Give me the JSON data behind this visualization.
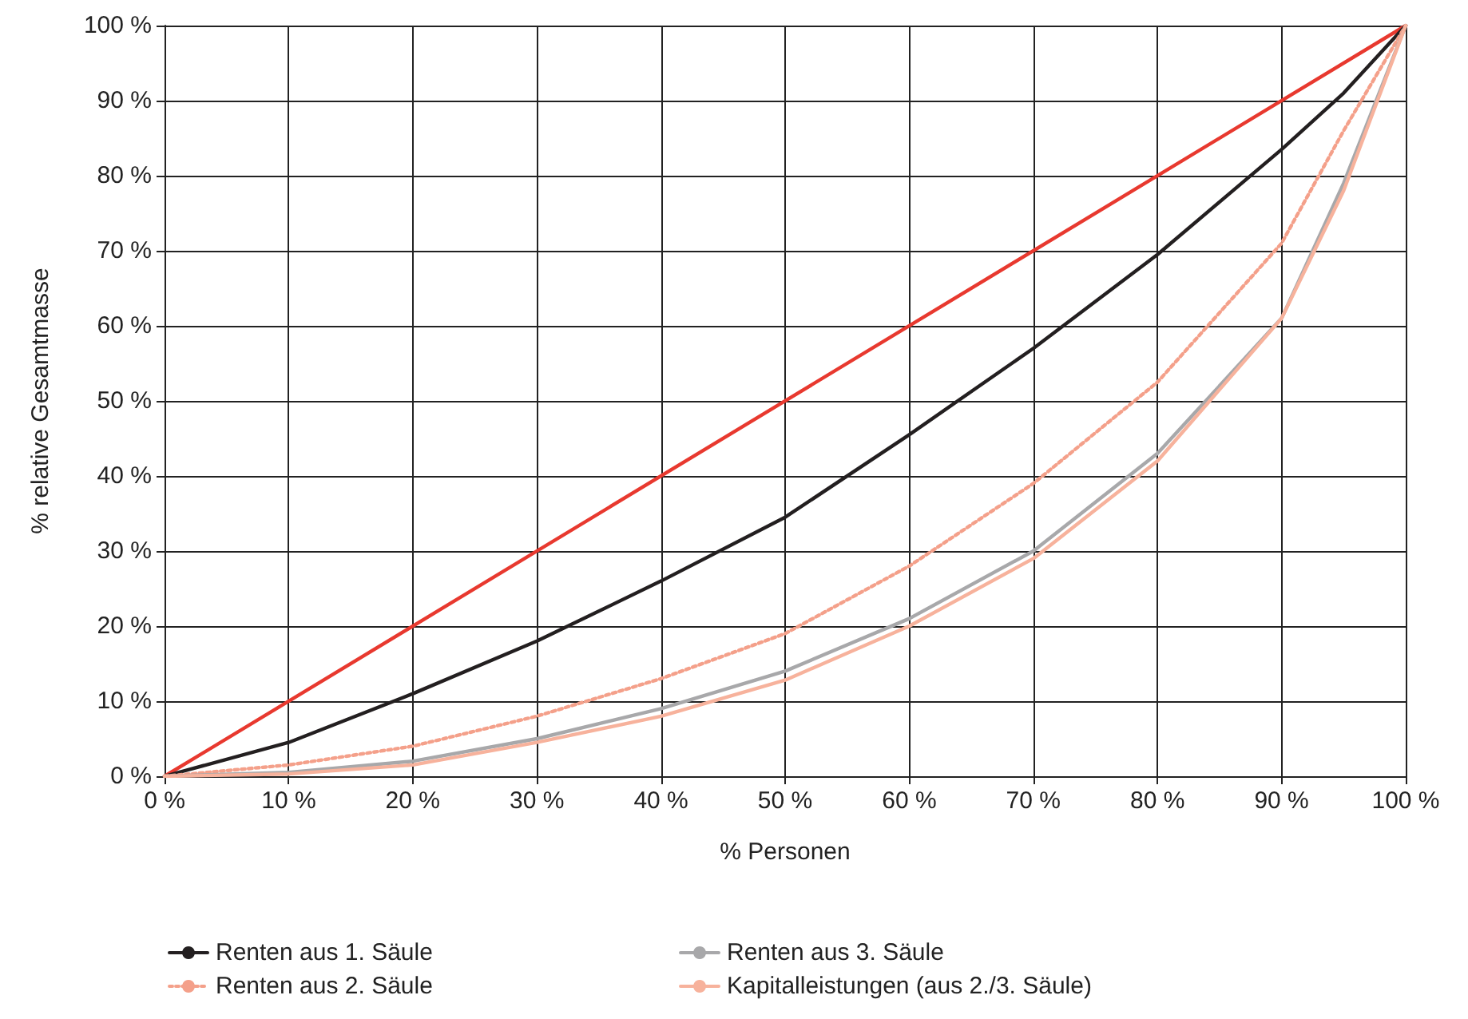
{
  "chart_data": {
    "type": "line",
    "xlabel": "% Personen",
    "ylabel": "% relative Gesamtmasse",
    "x": [
      0,
      10,
      20,
      30,
      40,
      50,
      60,
      70,
      80,
      90,
      95,
      100
    ],
    "xlim": [
      0,
      100
    ],
    "ylim": [
      0,
      100
    ],
    "xticks": [
      {
        "value": 0,
        "label": "0 %"
      },
      {
        "value": 10,
        "label": "10 %"
      },
      {
        "value": 20,
        "label": "20 %"
      },
      {
        "value": 30,
        "label": "30 %"
      },
      {
        "value": 40,
        "label": "40 %"
      },
      {
        "value": 50,
        "label": "50 %"
      },
      {
        "value": 60,
        "label": "60 %"
      },
      {
        "value": 70,
        "label": "70 %"
      },
      {
        "value": 80,
        "label": "80 %"
      },
      {
        "value": 90,
        "label": "90 %"
      },
      {
        "value": 100,
        "label": "100 %"
      }
    ],
    "yticks": [
      {
        "value": 0,
        "label": "0 %"
      },
      {
        "value": 10,
        "label": "10 %"
      },
      {
        "value": 20,
        "label": "20 %"
      },
      {
        "value": 30,
        "label": "30 %"
      },
      {
        "value": 40,
        "label": "40 %"
      },
      {
        "value": 50,
        "label": "50 %"
      },
      {
        "value": 60,
        "label": "60 %"
      },
      {
        "value": 70,
        "label": "70 %"
      },
      {
        "value": 80,
        "label": "80 %"
      },
      {
        "value": 90,
        "label": "90 %"
      },
      {
        "value": 100,
        "label": "100 %"
      }
    ],
    "grid": true,
    "legend": "bottom",
    "marker": "none",
    "line_style": "solid",
    "series": [
      {
        "color": "#e8392f",
        "x": [
          0,
          100
        ],
        "values": [
          0,
          100
        ]
      },
      {
        "name": "Renten aus 1. Säule",
        "color": "#231f20",
        "values": [
          0,
          4.5,
          11,
          18,
          26,
          34.5,
          45.5,
          57,
          69.5,
          83.5,
          91,
          100
        ]
      },
      {
        "name": "Renten aus 2. Säule",
        "color": "#f4a08a",
        "line_style": "dotted",
        "values": [
          0,
          1.5,
          4,
          8,
          13,
          19,
          28,
          39,
          52.5,
          71,
          86,
          100
        ]
      },
      {
        "name": "Renten aus 3. Säule",
        "color": "#a8a8aa",
        "values": [
          0,
          0.5,
          2,
          5,
          9,
          14,
          21,
          30,
          43,
          61,
          79,
          100
        ]
      },
      {
        "name": "Kapitalleistungen (aus 2./3. Säule)",
        "color": "#f7b29c",
        "values": [
          0,
          0.3,
          1.5,
          4.5,
          8,
          12.8,
          20,
          29,
          42,
          61,
          78,
          100
        ]
      }
    ]
  }
}
